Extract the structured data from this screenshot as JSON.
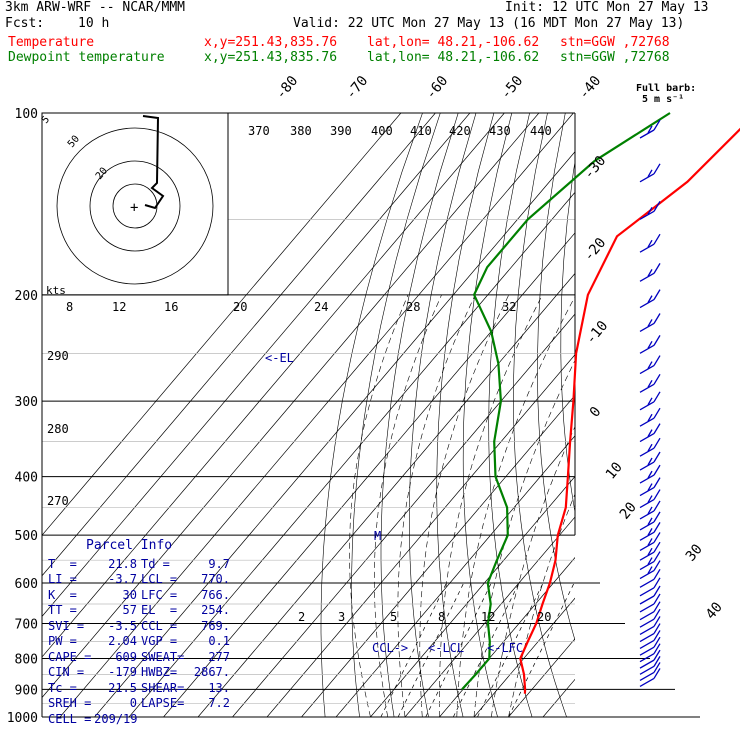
{
  "header": {
    "model": "3km ARW-WRF -- NCAR/MMM",
    "init": "Init: 12 UTC Mon 27 May 13",
    "fcst_label": "Fcst:",
    "fcst_value": "10 h",
    "valid": "Valid: 22 UTC Mon 27 May 13 (16 MDT Mon 27 May 13)",
    "temp_line": {
      "label": "Temperature",
      "xy": "x,y=251.43,835.76",
      "latlon": "lat,lon= 48.21,-106.62",
      "stn": "stn=GGW ,72768"
    },
    "dewp_line": {
      "label": "Dewpoint temperature",
      "xy": "x,y=251.43,835.76",
      "latlon": "lat,lon= 48.21,-106.62",
      "stn": "stn=GGW ,72768"
    }
  },
  "colors": {
    "temperature": "#ff0000",
    "dewpoint": "#008000",
    "isobar": "#000000",
    "text_blue": "#0000a0",
    "barb": "#0000c0"
  },
  "barb_legend": {
    "line1": "Full barb:",
    "line2": "5 m s⁻¹"
  },
  "chart_data": {
    "type": "line",
    "title": "",
    "y_axis": {
      "label": "",
      "scale": "log-pressure",
      "ticks": [
        100,
        200,
        300,
        400,
        500,
        600,
        700,
        800,
        900,
        1000
      ],
      "units": "hPa"
    },
    "isotherm_labels": [
      "-80",
      "-70",
      "-60",
      "-50",
      "-40",
      "-30",
      "-20",
      "-10",
      "0",
      "10",
      "20",
      "30",
      "40"
    ],
    "theta_labels": [
      "370",
      "380",
      "390",
      "400",
      "410",
      "420",
      "430",
      "440",
      "290",
      "280",
      "270"
    ],
    "mixing_ratio_labels": [
      "2",
      "3",
      "5",
      "8",
      "12",
      "20"
    ],
    "hodograph_speed_labels": [
      "12",
      "16",
      "20",
      "24",
      "28",
      "32"
    ],
    "hodograph_ring_labels": [
      "5",
      "50",
      "20"
    ],
    "hodograph_units": "kts",
    "hodo_first_label": "8",
    "series": [
      {
        "name": "Temperature",
        "points": [
          [
            100,
            -47
          ],
          [
            130,
            -50
          ],
          [
            160,
            -57
          ],
          [
            200,
            -51
          ],
          [
            250,
            -40
          ],
          [
            300,
            -29
          ],
          [
            350,
            -20
          ],
          [
            400,
            -12
          ],
          [
            450,
            -5
          ],
          [
            500,
            -0.5
          ],
          [
            550,
            5
          ],
          [
            600,
            9
          ],
          [
            650,
            12
          ],
          [
            700,
            15
          ],
          [
            750,
            17
          ],
          [
            800,
            19
          ],
          [
            850,
            24
          ],
          [
            900,
            28
          ],
          [
            915,
            29
          ]
        ]
      },
      {
        "name": "Dewpoint temperature",
        "points": [
          [
            100,
            -72
          ],
          [
            120,
            -82
          ],
          [
            150,
            -87
          ],
          [
            180,
            -87
          ],
          [
            200,
            -84
          ],
          [
            230,
            -70
          ],
          [
            260,
            -60
          ],
          [
            300,
            -50
          ],
          [
            350,
            -42
          ],
          [
            400,
            -33
          ],
          [
            450,
            -22
          ],
          [
            500,
            -15
          ],
          [
            550,
            -12
          ],
          [
            600,
            -9
          ],
          [
            650,
            -3
          ],
          [
            700,
            1
          ],
          [
            750,
            6
          ],
          [
            800,
            10
          ],
          [
            850,
            10
          ],
          [
            900,
            9.7
          ]
        ]
      }
    ],
    "annotations": [
      "<-EL",
      "M",
      "CCL->",
      "<-LCL",
      "<-LFC"
    ]
  },
  "parcel_info": {
    "title": "Parcel Info",
    "rows": [
      [
        [
          "T  =",
          "21.8"
        ],
        [
          "Td =",
          "9.7"
        ]
      ],
      [
        [
          "LI =",
          "-3.7"
        ],
        [
          "LCL =",
          "770."
        ]
      ],
      [
        [
          "K  =",
          "30"
        ],
        [
          "LFC =",
          "766."
        ]
      ],
      [
        [
          "TT =",
          "57"
        ],
        [
          "EL  =",
          "254."
        ]
      ],
      [
        [
          "SVI =",
          "-3.5"
        ],
        [
          "CCL =",
          "769."
        ]
      ],
      [
        [
          "PW =",
          "2.04"
        ],
        [
          "VGP =",
          "0.1"
        ]
      ],
      [
        [
          "CAPE =",
          "609"
        ],
        [
          "SWEAT=",
          "277"
        ]
      ],
      [
        [
          "CIN =",
          "-179"
        ],
        [
          "HWBZ=",
          "2867."
        ]
      ],
      [
        [
          "Tc =",
          "21.5"
        ],
        [
          "SHEAR=",
          "13."
        ]
      ],
      [
        [
          "SREH =",
          "0"
        ],
        [
          "LAPSE=",
          "7.2"
        ]
      ],
      [
        [
          "CELL =",
          "209/19"
        ],
        [
          "",
          ""
        ]
      ]
    ]
  }
}
